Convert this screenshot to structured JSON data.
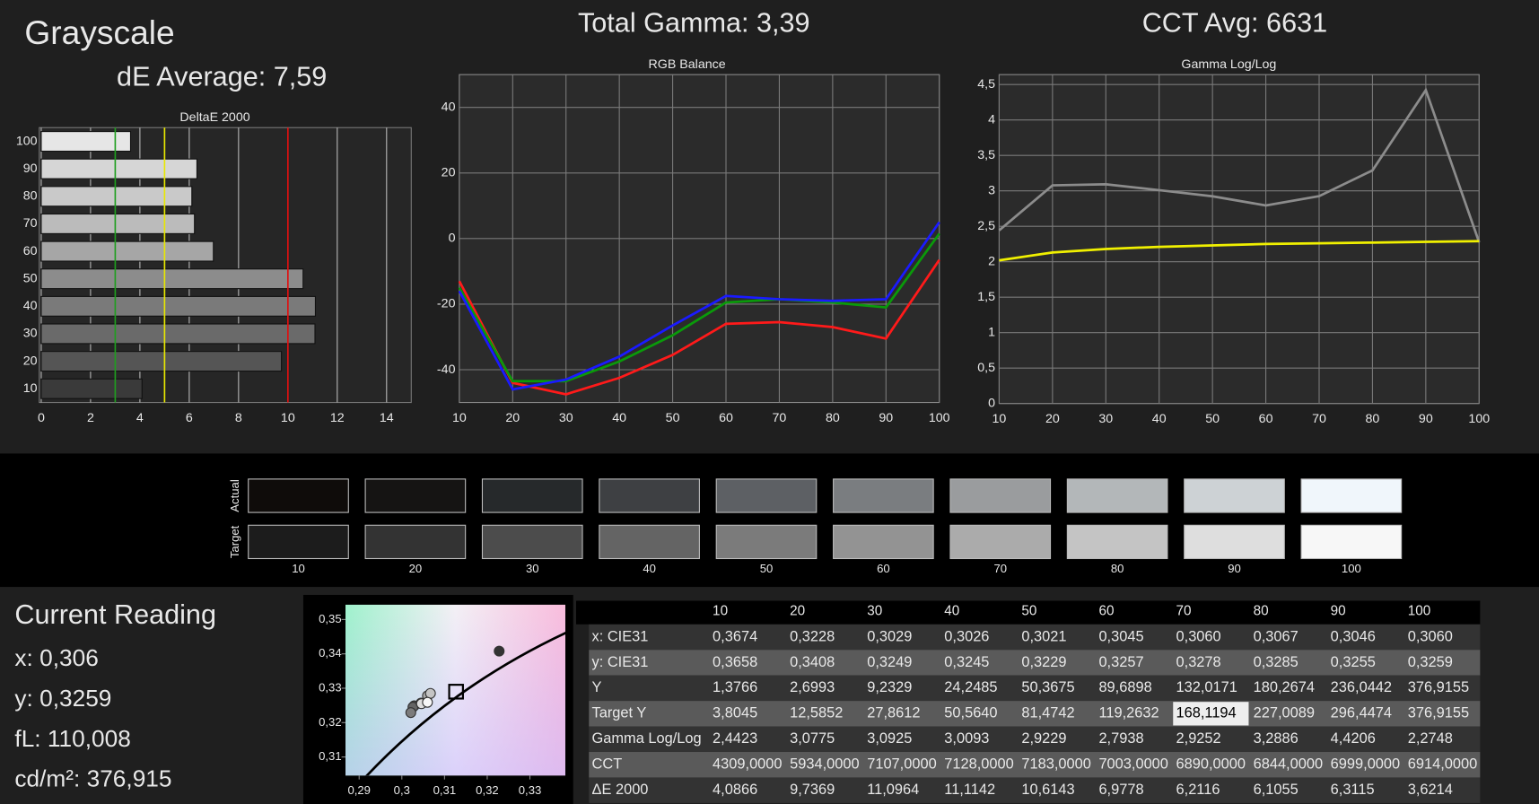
{
  "header": {
    "title": "Grayscale",
    "de_average": "dE Average: 7,59",
    "total_gamma": "Total Gamma: 3,39",
    "cct_avg": "CCT Avg: 6631"
  },
  "chart_data": [
    {
      "type": "hbar",
      "title": "DeltaE 2000",
      "categories": [
        "100",
        "90",
        "80",
        "70",
        "60",
        "50",
        "40",
        "30",
        "20",
        "10"
      ],
      "values": [
        3.6214,
        6.3115,
        6.1055,
        6.2116,
        6.9778,
        10.6143,
        11.1142,
        11.0964,
        9.7369,
        4.0866
      ],
      "bar_colors": [
        "#e6e6e6",
        "#d6d6d6",
        "#c9c9c9",
        "#bbbbbb",
        "#a6a6a6",
        "#8c8c8c",
        "#7a7a7a",
        "#6a6a6a",
        "#555555",
        "#3a3a3a"
      ],
      "xlim": [
        0,
        15
      ],
      "xticks": [
        0,
        2,
        4,
        6,
        8,
        10,
        12,
        14
      ],
      "grid": true,
      "reference_lines": [
        {
          "value": 3,
          "color": "#1f9e1f"
        },
        {
          "value": 5,
          "color": "#e8e800"
        },
        {
          "value": 10,
          "color": "#e01010"
        }
      ]
    },
    {
      "type": "line",
      "title": "RGB Balance",
      "x": [
        10,
        20,
        30,
        40,
        50,
        60,
        70,
        80,
        90,
        100
      ],
      "xlim": [
        10,
        100
      ],
      "xticks": [
        10,
        20,
        30,
        40,
        50,
        60,
        70,
        80,
        90,
        100
      ],
      "ylim": [
        -50,
        50
      ],
      "yticks": [
        -40,
        -20,
        0,
        20,
        40
      ],
      "grid": true,
      "series": [
        {
          "color": "#ff1a1a",
          "values": [
            -13,
            -44,
            -47.5,
            -42.5,
            -35.5,
            -26,
            -25.5,
            -27,
            -30.5,
            -6.5
          ]
        },
        {
          "color": "#0a9a0a",
          "values": [
            -15,
            -43.5,
            -43.5,
            -37.5,
            -29.5,
            -19.5,
            -18.5,
            -19.5,
            -21,
            1.5
          ]
        },
        {
          "color": "#1a1aff",
          "values": [
            -16,
            -46,
            -43,
            -36,
            -26.5,
            -17.5,
            -18.5,
            -19,
            -18.5,
            5
          ]
        }
      ]
    },
    {
      "type": "line",
      "title": "Gamma Log/Log",
      "x": [
        10,
        20,
        30,
        40,
        50,
        60,
        70,
        80,
        90,
        100
      ],
      "xlim": [
        10,
        100
      ],
      "xticks": [
        10,
        20,
        30,
        40,
        50,
        60,
        70,
        80,
        90,
        100
      ],
      "ylim": [
        0,
        4.64
      ],
      "yticks": [
        0,
        {
          "value": 0.5,
          "label": "0,5"
        },
        1,
        {
          "value": 1.5,
          "label": "1,5"
        },
        2,
        {
          "value": 2.5,
          "label": "2,5"
        },
        3,
        {
          "value": 3.5,
          "label": "3,5"
        },
        4,
        {
          "value": 4.5,
          "label": "4,5"
        }
      ],
      "grid": true,
      "series": [
        {
          "color": "#8c8c8c",
          "values": [
            2.4423,
            3.0775,
            3.0925,
            3.0093,
            2.9229,
            2.7938,
            2.9252,
            3.2886,
            4.4206,
            2.2748
          ]
        },
        {
          "color": "#f0f000",
          "values": [
            2.02,
            2.13,
            2.18,
            2.21,
            2.23,
            2.25,
            2.26,
            2.27,
            2.28,
            2.29
          ]
        }
      ]
    },
    {
      "type": "scatter",
      "xlim": [
        0.2868,
        0.3383
      ],
      "ylim": [
        0.3046,
        0.3543
      ],
      "xticks": [
        {
          "value": 0.29,
          "label": "0,29"
        },
        {
          "value": 0.3,
          "label": "0,3"
        },
        {
          "value": 0.31,
          "label": "0,31"
        },
        {
          "value": 0.32,
          "label": "0,32"
        },
        {
          "value": 0.33,
          "label": "0,33"
        }
      ],
      "yticks": [
        {
          "value": 0.31,
          "label": "0,31"
        },
        {
          "value": 0.32,
          "label": "0,32"
        },
        {
          "value": 0.33,
          "label": "0,33"
        },
        {
          "value": 0.34,
          "label": "0,34"
        },
        {
          "value": 0.35,
          "label": "0,35"
        }
      ],
      "x": [
        0.3228,
        0.3029,
        0.3026,
        0.3021,
        0.3045,
        0.306,
        0.3067,
        0.3046,
        0.306
      ],
      "values": [
        0.3408,
        0.3249,
        0.3245,
        0.3229,
        0.3257,
        0.3278,
        0.3285,
        0.3255,
        0.3259
      ],
      "colors": [
        "#333333",
        "#4c4c4c",
        "#646464",
        "#7b7b7b",
        "#939393",
        "#ababab",
        "#c4c4c4",
        "#dedede",
        "#f7f7f7"
      ],
      "target_x": 0.3127,
      "target_y": 0.329
    }
  ],
  "swatches": {
    "actual_label": "Actual",
    "target_label": "Target",
    "labels": [
      "10",
      "20",
      "30",
      "40",
      "50",
      "60",
      "70",
      "80",
      "90",
      "100"
    ],
    "actual_colors": [
      "#0f0c0a",
      "#151413",
      "#26292b",
      "#3e4043",
      "#5d6064",
      "#7a7d80",
      "#9a9c9e",
      "#b3b7b9",
      "#cdd2d5",
      "#f0f6fb"
    ],
    "target_colors": [
      "#1c1c1c",
      "#333333",
      "#4c4c4c",
      "#646464",
      "#7b7b7b",
      "#939393",
      "#ababab",
      "#c4c4c4",
      "#dedede",
      "#f7f7f7"
    ]
  },
  "current_reading": {
    "title": "Current Reading",
    "lines": [
      "x: 0,306",
      "y: 0,3259",
      "fL: 110,008",
      "cd/m²: 376,915"
    ]
  },
  "table": {
    "columns": [
      "10",
      "20",
      "30",
      "40",
      "50",
      "60",
      "70",
      "80",
      "90",
      "100"
    ],
    "highlight": [
      3,
      6
    ],
    "rows": [
      {
        "label": "x: CIE31",
        "cells": [
          "0,3674",
          "0,3228",
          "0,3029",
          "0,3026",
          "0,3021",
          "0,3045",
          "0,3060",
          "0,3067",
          "0,3046",
          "0,3060"
        ]
      },
      {
        "label": "y: CIE31",
        "cells": [
          "0,3658",
          "0,3408",
          "0,3249",
          "0,3245",
          "0,3229",
          "0,3257",
          "0,3278",
          "0,3285",
          "0,3255",
          "0,3259"
        ]
      },
      {
        "label": "Y",
        "cells": [
          "1,3766",
          "2,6993",
          "9,2329",
          "24,2485",
          "50,3675",
          "89,6898",
          "132,0171",
          "180,2674",
          "236,0442",
          "376,9155"
        ]
      },
      {
        "label": "Target Y",
        "cells": [
          "3,8045",
          "12,5852",
          "27,8612",
          "50,5640",
          "81,4742",
          "119,2632",
          "168,1194",
          "227,0089",
          "296,4474",
          "376,9155"
        ]
      },
      {
        "label": "Gamma Log/Log",
        "cells": [
          "2,4423",
          "3,0775",
          "3,0925",
          "3,0093",
          "2,9229",
          "2,7938",
          "2,9252",
          "3,2886",
          "4,4206",
          "2,2748"
        ]
      },
      {
        "label": "CCT",
        "cells": [
          "4309,0000",
          "5934,0000",
          "7107,0000",
          "7128,0000",
          "7183,0000",
          "7003,0000",
          "6890,0000",
          "6844,0000",
          "6999,0000",
          "6914,0000"
        ]
      },
      {
        "label": "ΔE 2000",
        "cells": [
          "4,0866",
          "9,7369",
          "11,0964",
          "11,1142",
          "10,6143",
          "6,9778",
          "6,2116",
          "6,1055",
          "6,3115",
          "3,6214"
        ]
      }
    ]
  }
}
